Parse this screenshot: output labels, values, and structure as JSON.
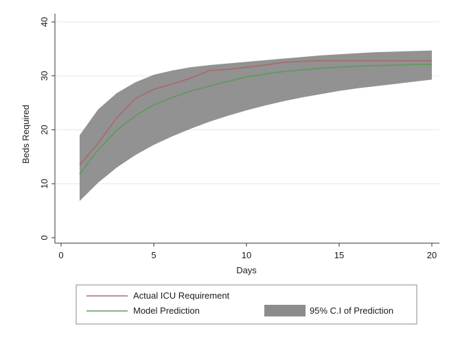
{
  "chart_data": {
    "type": "line",
    "xlabel": "Days",
    "ylabel": "Beds Required",
    "xlim": [
      0,
      20
    ],
    "ylim": [
      0,
      40
    ],
    "x_ticks": [
      0,
      5,
      10,
      15,
      20
    ],
    "y_ticks": [
      0,
      10,
      20,
      30,
      40
    ],
    "x_tick_labels": [
      "0",
      "5",
      "10",
      "15",
      "20"
    ],
    "y_tick_labels": [
      "0",
      "10",
      "20",
      "30",
      "40"
    ],
    "grid": "horizontal",
    "legend_position": "bottom",
    "x": [
      1,
      2,
      3,
      4,
      5,
      6,
      7,
      8,
      9,
      10,
      11,
      12,
      13,
      14,
      15,
      16,
      17,
      18,
      19,
      20
    ],
    "series": [
      {
        "name": "Actual ICU Requirement",
        "color": "#a86a6a",
        "values": [
          13.5,
          17.5,
          22.2,
          25.8,
          27.5,
          28.5,
          29.6,
          31.0,
          31.2,
          31.6,
          32.0,
          32.5,
          32.7,
          32.8,
          32.8,
          32.8,
          32.8,
          32.8,
          32.8,
          32.8
        ]
      },
      {
        "name": "Model Prediction",
        "color": "#5e9a5e",
        "values": [
          11.8,
          16.3,
          19.9,
          22.6,
          24.6,
          26.0,
          27.2,
          28.1,
          29.0,
          29.8,
          30.3,
          30.8,
          31.1,
          31.4,
          31.6,
          31.8,
          31.9,
          32.0,
          32.1,
          32.1
        ]
      }
    ],
    "confidence_band": {
      "name": "95% C.I of Prediction",
      "color": "#8c8c8c",
      "lower": [
        6.8,
        10.2,
        13.0,
        15.3,
        17.2,
        18.8,
        20.2,
        21.5,
        22.6,
        23.6,
        24.5,
        25.3,
        26.0,
        26.6,
        27.2,
        27.7,
        28.1,
        28.5,
        28.9,
        29.3
      ],
      "upper": [
        19.0,
        23.8,
        26.8,
        28.8,
        30.2,
        31.0,
        31.6,
        32.0,
        32.3,
        32.6,
        32.9,
        33.2,
        33.5,
        33.8,
        34.0,
        34.2,
        34.4,
        34.5,
        34.6,
        34.7
      ]
    }
  }
}
